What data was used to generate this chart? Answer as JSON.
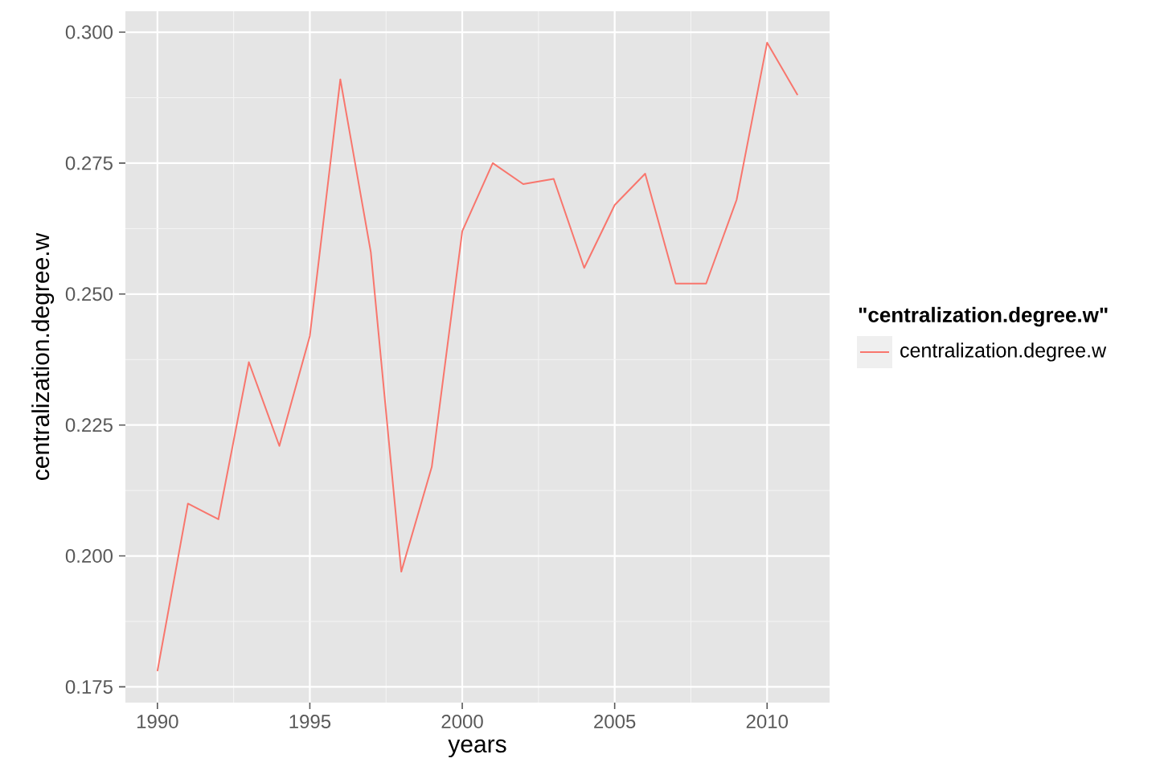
{
  "chart_data": {
    "type": "line",
    "xlabel": "years",
    "ylabel": "centralization.degree.w",
    "legend_title": "\"centralization.degree.w\"",
    "x": [
      1990,
      1991,
      1992,
      1993,
      1994,
      1995,
      1996,
      1997,
      1998,
      1999,
      2000,
      2001,
      2002,
      2003,
      2004,
      2005,
      2006,
      2007,
      2008,
      2009,
      2010,
      2011
    ],
    "series": [
      {
        "name": "centralization.degree.w",
        "color": "#f8766d",
        "values": [
          0.178,
          0.21,
          0.207,
          0.237,
          0.221,
          0.242,
          0.291,
          0.258,
          0.197,
          0.217,
          0.262,
          0.275,
          0.271,
          0.272,
          0.255,
          0.267,
          0.273,
          0.252,
          0.252,
          0.268,
          0.298,
          0.288
        ]
      }
    ],
    "xlim": [
      1988.95,
      2012.05
    ],
    "ylim": [
      0.172,
      0.304
    ],
    "xticks": [
      1990,
      1995,
      2000,
      2005,
      2010
    ],
    "yticks": [
      {
        "value": 0.175,
        "label": "0.175"
      },
      {
        "value": 0.2,
        "label": "0.200"
      },
      {
        "value": 0.225,
        "label": "0.225"
      },
      {
        "value": 0.25,
        "label": "0.250"
      },
      {
        "value": 0.275,
        "label": "0.275"
      },
      {
        "value": 0.3,
        "label": "0.300"
      }
    ],
    "grid": true,
    "legend": "right",
    "marker": "none",
    "line_style": "solid"
  }
}
